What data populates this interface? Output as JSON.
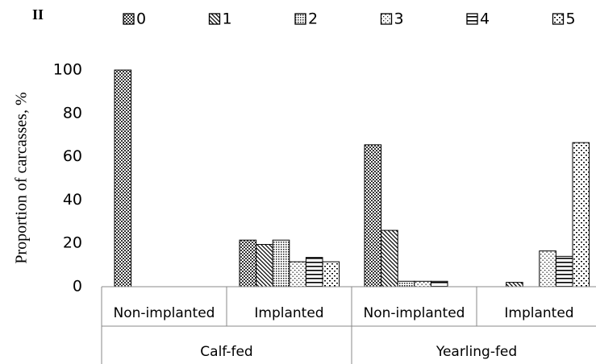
{
  "chart_data": {
    "type": "bar",
    "title": "II",
    "ylabel": "Proportion of carcasses, %",
    "categories": [
      "Non-implanted",
      "Implanted",
      "Non-implanted",
      "Implanted"
    ],
    "category_groups": [
      "Calf-fed",
      "Calf-fed",
      "Yearling-fed",
      "Yearling-fed"
    ],
    "series": [
      {
        "name": "0",
        "color": "#000000",
        "values": [
          100,
          21.5,
          65.5,
          0
        ]
      },
      {
        "name": "1",
        "color": "#000000",
        "values": [
          0,
          19.5,
          26,
          2
        ]
      },
      {
        "name": "2",
        "color": "#000000",
        "values": [
          0,
          21.5,
          2.5,
          0
        ]
      },
      {
        "name": "3",
        "color": "#000000",
        "values": [
          0,
          11.5,
          2.5,
          16.5
        ]
      },
      {
        "name": "4",
        "color": "#000000",
        "values": [
          0,
          13.5,
          2.5,
          14
        ]
      },
      {
        "name": "5",
        "color": "#000000",
        "values": [
          0,
          11.5,
          0,
          66.5
        ]
      }
    ],
    "ylim": [
      0,
      100
    ],
    "yticks": [
      0,
      20,
      40,
      60,
      80,
      100
    ],
    "grid": false,
    "legend": "top"
  }
}
